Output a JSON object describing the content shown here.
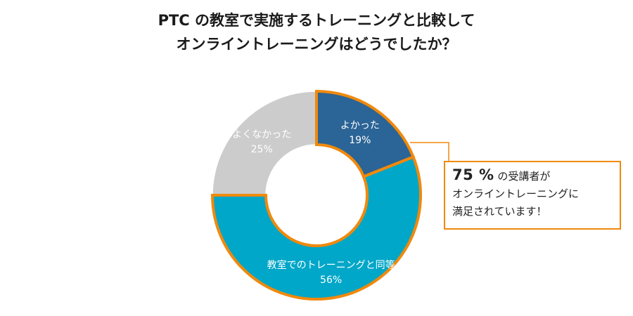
{
  "title": {
    "line1": "PTC の教室で実施するトレーニングと比較して",
    "line2": "オンライントレーニングはどうでしたか？"
  },
  "colors": {
    "good": "#2b6496",
    "same": "#00a7c8",
    "notgood": "#cccccc",
    "highlight": "#f0890c"
  },
  "chart_data": {
    "type": "pie",
    "donut": true,
    "title": "PTC の教室で実施するトレーニングと比較して オンライントレーニングはどうでしたか？",
    "slices": [
      {
        "label": "よかった",
        "value": 19,
        "value_label": "19%",
        "color": "#2b6496",
        "highlighted": true
      },
      {
        "label": "教室でのトレーニングと同等",
        "value": 56,
        "value_label": "56%",
        "color": "#00a7c8",
        "highlighted": true
      },
      {
        "label": "よくなかった",
        "value": 25,
        "value_label": "25%",
        "color": "#cccccc",
        "highlighted": false
      }
    ]
  },
  "callout": {
    "big": "75 %",
    "rest1": "の受講者が",
    "line2": "オンライントレーニングに",
    "line3": "満足されています！"
  }
}
